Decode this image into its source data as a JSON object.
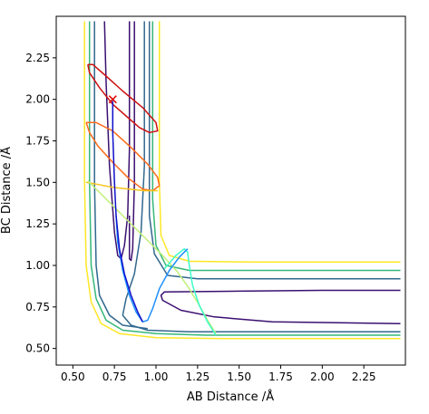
{
  "chart_data": {
    "type": "line",
    "xlabel": "AB Distance /Å",
    "ylabel": "BC Distance /Å",
    "xlim": [
      0.4,
      2.5
    ],
    "ylim": [
      0.4,
      2.5
    ],
    "xticks": [
      0.5,
      0.75,
      1.0,
      1.25,
      1.5,
      1.75,
      2.0,
      2.25
    ],
    "yticks": [
      0.5,
      0.75,
      1.0,
      1.25,
      1.5,
      1.75,
      2.0,
      2.25
    ],
    "xtick_labels": [
      "0.50",
      "0.75",
      "1.00",
      "1.25",
      "1.50",
      "1.75",
      "2.00",
      "2.25"
    ],
    "ytick_labels": [
      "0.50",
      "0.75",
      "1.00",
      "1.25",
      "1.50",
      "1.75",
      "2.00",
      "2.25"
    ],
    "grid": false,
    "contours": [
      {
        "level": 0,
        "color": "#3b0f70",
        "points": [
          [
            0.84,
            2.47
          ],
          [
            0.84,
            1.7
          ],
          [
            0.83,
            1.3
          ],
          [
            0.81,
            1.12
          ],
          [
            0.79,
            1.04
          ],
          [
            0.77,
            1.06
          ],
          [
            0.75,
            1.2
          ],
          [
            0.72,
            1.6
          ],
          [
            0.7,
            2.1
          ],
          [
            0.69,
            2.47
          ]
        ]
      },
      {
        "level": 0,
        "color": "#3b0f70",
        "points": [
          [
            0.87,
            2.47
          ],
          [
            0.87,
            1.5
          ],
          [
            0.86,
            1.1
          ],
          [
            0.85,
            1.03
          ],
          [
            0.84,
            1.04
          ],
          [
            0.84,
            1.3
          ]
        ]
      },
      {
        "level": 0,
        "color": "#3b0f70",
        "points": [
          [
            2.47,
            0.85
          ],
          [
            2.0,
            0.85
          ],
          [
            1.5,
            0.845
          ],
          [
            1.05,
            0.84
          ],
          [
            1.03,
            0.82
          ],
          [
            1.04,
            0.79
          ],
          [
            1.15,
            0.73
          ],
          [
            1.35,
            0.69
          ],
          [
            1.7,
            0.66
          ],
          [
            2.47,
            0.65
          ]
        ]
      },
      {
        "level": 1,
        "color": "#31688e",
        "points": [
          [
            0.93,
            2.47
          ],
          [
            0.93,
            1.6
          ],
          [
            0.91,
            1.2
          ],
          [
            0.87,
            0.95
          ],
          [
            0.82,
            0.8
          ],
          [
            0.8,
            0.7
          ],
          [
            0.85,
            0.64
          ],
          [
            0.95,
            0.61
          ],
          [
            1.2,
            0.6
          ],
          [
            2.47,
            0.6
          ]
        ]
      },
      {
        "level": 1,
        "color": "#31688e",
        "points": [
          [
            0.63,
            2.47
          ],
          [
            0.63,
            1.5
          ],
          [
            0.64,
            1.0
          ],
          [
            0.66,
            0.82
          ],
          [
            0.72,
            0.7
          ],
          [
            0.8,
            0.64
          ],
          [
            0.95,
            0.62
          ]
        ]
      },
      {
        "level": 1,
        "color": "#31688e",
        "points": [
          [
            0.96,
            2.47
          ],
          [
            0.96,
            1.3
          ],
          [
            0.99,
            1.07
          ],
          [
            1.07,
            0.94
          ],
          [
            1.25,
            0.92
          ],
          [
            1.6,
            0.92
          ],
          [
            2.47,
            0.92
          ]
        ]
      },
      {
        "level": 2,
        "color": "#35b779",
        "points": [
          [
            0.6,
            2.47
          ],
          [
            0.6,
            1.5
          ],
          [
            0.61,
            1.0
          ],
          [
            0.64,
            0.8
          ],
          [
            0.7,
            0.67
          ],
          [
            0.8,
            0.61
          ],
          [
            1.0,
            0.59
          ],
          [
            1.3,
            0.58
          ],
          [
            2.47,
            0.58
          ]
        ]
      },
      {
        "level": 2,
        "color": "#35b779",
        "points": [
          [
            0.98,
            2.47
          ],
          [
            0.98,
            1.4
          ],
          [
            1.0,
            1.12
          ],
          [
            1.06,
            1.0
          ],
          [
            1.2,
            0.97
          ],
          [
            1.6,
            0.97
          ],
          [
            2.47,
            0.97
          ]
        ]
      },
      {
        "level": 3,
        "color": "#fde725",
        "points": [
          [
            0.57,
            2.47
          ],
          [
            0.57,
            1.5
          ],
          [
            0.58,
            1.0
          ],
          [
            0.61,
            0.78
          ],
          [
            0.67,
            0.65
          ],
          [
            0.78,
            0.59
          ],
          [
            1.0,
            0.565
          ],
          [
            1.4,
            0.56
          ],
          [
            2.47,
            0.56
          ]
        ]
      },
      {
        "level": 3,
        "color": "#fde725",
        "points": [
          [
            1.02,
            2.47
          ],
          [
            1.02,
            1.5
          ],
          [
            1.03,
            1.18
          ],
          [
            1.08,
            1.06
          ],
          [
            1.2,
            1.025
          ],
          [
            1.6,
            1.02
          ],
          [
            2.47,
            1.02
          ]
        ]
      },
      {
        "level": 4,
        "color": "#cc1111",
        "points": [
          [
            0.59,
            2.21
          ],
          [
            0.62,
            2.21
          ],
          [
            0.7,
            2.14
          ],
          [
            0.8,
            2.05
          ],
          [
            0.92,
            1.95
          ],
          [
            1.0,
            1.86
          ],
          [
            1.01,
            1.81
          ],
          [
            0.96,
            1.8
          ],
          [
            0.9,
            1.83
          ],
          [
            0.82,
            1.9
          ],
          [
            0.74,
            1.97
          ],
          [
            0.66,
            2.07
          ],
          [
            0.6,
            2.16
          ],
          [
            0.59,
            2.21
          ]
        ]
      },
      {
        "level": 5,
        "color": "#ff6a1a",
        "points": [
          [
            0.58,
            1.86
          ],
          [
            0.64,
            1.86
          ],
          [
            0.74,
            1.81
          ],
          [
            0.85,
            1.71
          ],
          [
            0.95,
            1.61
          ],
          [
            1.01,
            1.53
          ],
          [
            1.02,
            1.48
          ],
          [
            0.98,
            1.45
          ],
          [
            0.92,
            1.46
          ],
          [
            0.84,
            1.52
          ],
          [
            0.74,
            1.62
          ],
          [
            0.65,
            1.72
          ],
          [
            0.6,
            1.8
          ],
          [
            0.58,
            1.86
          ]
        ]
      },
      {
        "level": 6,
        "color": "#f5c518",
        "points": [
          [
            0.58,
            1.5
          ],
          [
            0.64,
            1.49
          ],
          [
            0.74,
            1.47
          ],
          [
            0.84,
            1.46
          ],
          [
            0.93,
            1.45
          ],
          [
            1.01,
            1.45
          ]
        ]
      },
      {
        "level": 7,
        "color": "#bff07a",
        "points": [
          [
            0.59,
            1.51
          ],
          [
            0.68,
            1.42
          ],
          [
            0.8,
            1.3
          ],
          [
            0.92,
            1.18
          ],
          [
            1.04,
            1.06
          ],
          [
            1.13,
            0.96
          ],
          [
            1.2,
            0.86
          ],
          [
            1.26,
            0.76
          ],
          [
            1.31,
            0.67
          ],
          [
            1.36,
            0.59
          ]
        ]
      },
      {
        "level": 8,
        "color": "#3dfcc7",
        "points": [
          [
            1.36,
            0.58
          ],
          [
            1.31,
            0.66
          ],
          [
            1.26,
            0.76
          ],
          [
            1.22,
            0.88
          ],
          [
            1.2,
            1.0
          ],
          [
            1.19,
            1.08
          ],
          [
            1.17,
            1.1
          ],
          [
            1.12,
            1.06
          ],
          [
            1.05,
            0.98
          ]
        ]
      },
      {
        "level": 9,
        "color": "#1e90ff",
        "points": [
          [
            1.19,
            1.1
          ],
          [
            1.14,
            1.05
          ],
          [
            1.08,
            0.97
          ],
          [
            1.02,
            0.86
          ],
          [
            0.98,
            0.74
          ],
          [
            0.95,
            0.67
          ],
          [
            0.92,
            0.66
          ],
          [
            0.88,
            0.72
          ],
          [
            0.84,
            0.82
          ],
          [
            0.8,
            0.97
          ],
          [
            0.77,
            1.14
          ],
          [
            0.76,
            1.3
          ]
        ]
      },
      {
        "level": 10,
        "color": "#1010cc",
        "points": [
          [
            0.74,
            1.99
          ],
          [
            0.74,
            1.8
          ],
          [
            0.75,
            1.5
          ],
          [
            0.76,
            1.3
          ],
          [
            0.78,
            1.1
          ],
          [
            0.81,
            0.95
          ],
          [
            0.85,
            0.82
          ],
          [
            0.89,
            0.72
          ],
          [
            0.92,
            0.66
          ]
        ]
      }
    ],
    "markers": [
      {
        "label": "",
        "x": 0.74,
        "y": 2.0,
        "color": "#dd0000",
        "symbol": "x"
      }
    ]
  }
}
